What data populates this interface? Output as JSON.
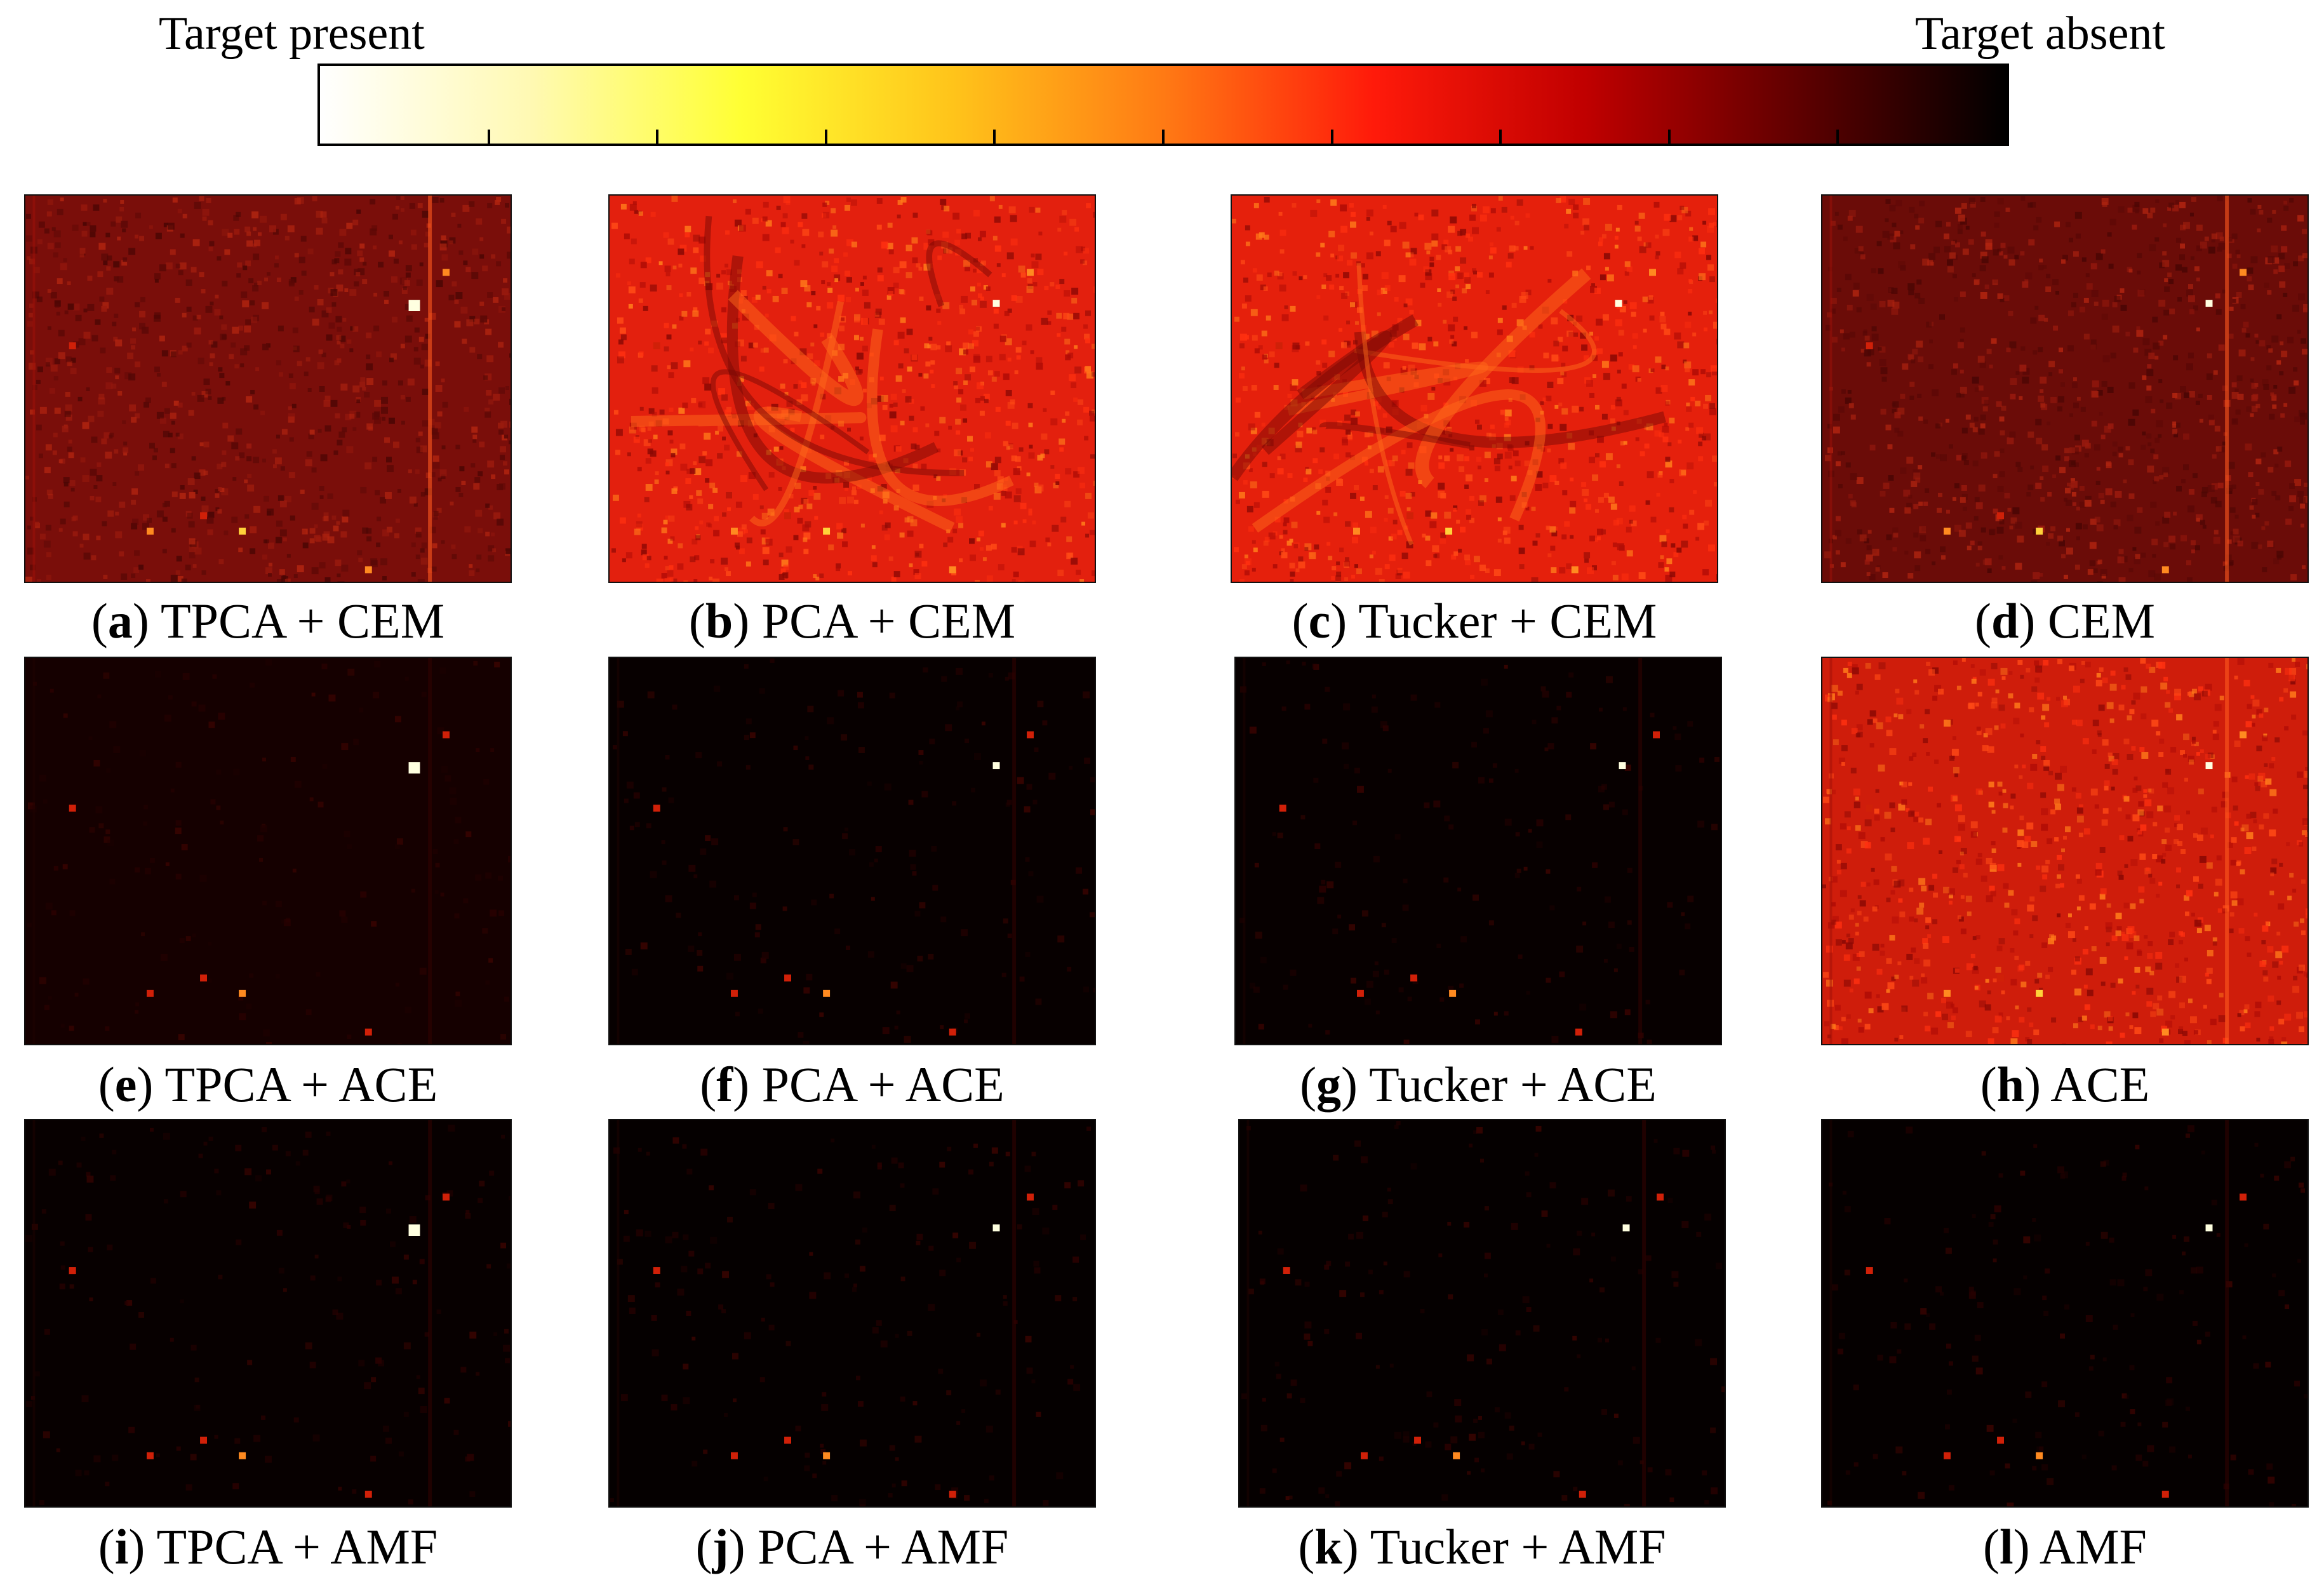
{
  "colorbar": {
    "left_label": "Target present",
    "right_label": "Target absent",
    "gradient_stops": [
      "#ffffff",
      "#fff9b3",
      "#ffff33",
      "#ffc41a",
      "#ff7a14",
      "#ff1a0a",
      "#c00000",
      "#600000",
      "#000000"
    ]
  },
  "panels": [
    {
      "id": "panel-a",
      "letter": "a",
      "label": "TPCA + CEM",
      "background": "#7a0e0a",
      "texture": "speckle"
    },
    {
      "id": "panel-b",
      "letter": "b",
      "label": "PCA + CEM",
      "background": "#e3200e",
      "texture": "swirl"
    },
    {
      "id": "panel-c",
      "letter": "c",
      "label": "Tucker + CEM",
      "background": "#e5200c",
      "texture": "streaks"
    },
    {
      "id": "panel-d",
      "letter": "d",
      "label": "CEM",
      "background": "#6b0c08",
      "texture": "speckle"
    },
    {
      "id": "panel-e",
      "letter": "e",
      "label": "TPCA + ACE",
      "background": "#150000",
      "texture": "dark"
    },
    {
      "id": "panel-f",
      "letter": "f",
      "label": "PCA + ACE",
      "background": "#070000",
      "texture": "dark"
    },
    {
      "id": "panel-g",
      "letter": "g",
      "label": "Tucker + ACE",
      "background": "#070000",
      "texture": "dark"
    },
    {
      "id": "panel-h",
      "letter": "h",
      "label": "ACE",
      "background": "#cf1d0b",
      "texture": "stripes"
    },
    {
      "id": "panel-i",
      "letter": "i",
      "label": "TPCA + AMF",
      "background": "#070000",
      "texture": "dark"
    },
    {
      "id": "panel-j",
      "letter": "j",
      "label": "PCA + AMF",
      "background": "#050000",
      "texture": "dark"
    },
    {
      "id": "panel-k",
      "letter": "k",
      "label": "Tucker + AMF",
      "background": "#050000",
      "texture": "dark"
    },
    {
      "id": "panel-l",
      "letter": "l",
      "label": "AMF",
      "background": "#050000",
      "texture": "dark"
    }
  ]
}
